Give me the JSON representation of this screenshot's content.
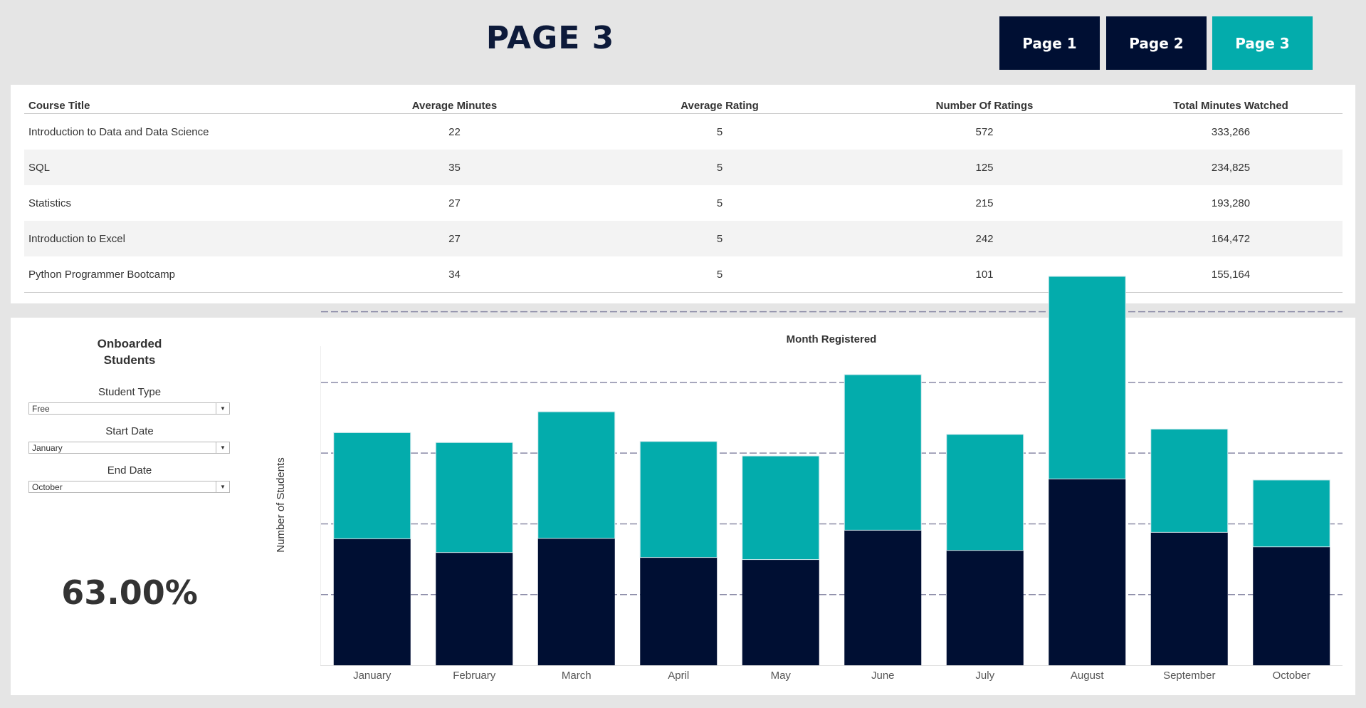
{
  "header": {
    "title": "PAGE 3",
    "nav": [
      {
        "label": "Page 1",
        "active": false
      },
      {
        "label": "Page 2",
        "active": false
      },
      {
        "label": "Page 3",
        "active": true
      }
    ]
  },
  "colors": {
    "navy": "#000f33",
    "teal": "#03acac",
    "grid_dash": "#8a8aa6"
  },
  "table": {
    "columns": [
      "Course Title",
      "Average Minutes",
      "Average Rating",
      "Number Of Ratings",
      "Total Minutes Watched"
    ],
    "rows": [
      [
        "Introduction to Data and Data Science",
        "22",
        "5",
        "572",
        "333,266"
      ],
      [
        "SQL",
        "35",
        "5",
        "125",
        "234,825"
      ],
      [
        "Statistics",
        "27",
        "5",
        "215",
        "193,280"
      ],
      [
        "Introduction to Excel",
        "27",
        "5",
        "242",
        "164,472"
      ],
      [
        "Python Programmer Bootcamp",
        "34",
        "5",
        "101",
        "155,164"
      ]
    ]
  },
  "filters": {
    "title": "Onboarded Students",
    "student_type": {
      "label": "Student Type",
      "value": "Free"
    },
    "start_date": {
      "label": "Start Date",
      "value": "January"
    },
    "end_date": {
      "label": "End Date",
      "value": "October"
    }
  },
  "kpi": {
    "value": "63.00%"
  },
  "chart_data": {
    "type": "bar",
    "stacked": true,
    "title": "Month Registered",
    "xlabel": "",
    "ylabel": "Number of Students",
    "categories": [
      "January",
      "February",
      "March",
      "April",
      "May",
      "June",
      "July",
      "August",
      "September",
      "October"
    ],
    "series": [
      {
        "color": "#000f33",
        "values": [
          35.8,
          31.9,
          35.9,
          30.5,
          29.9,
          38.2,
          32.5,
          52.7,
          37.6,
          33.5
        ]
      },
      {
        "color": "#03acac",
        "values": [
          30.0,
          31.1,
          35.8,
          32.8,
          29.3,
          44.0,
          32.8,
          57.3,
          29.2,
          18.9
        ]
      }
    ],
    "ylim": [
      0,
      110
    ],
    "gridlines": [
      20,
      40,
      60,
      80,
      100
    ],
    "grid": "dashed horizontal",
    "tick_labels_y": false
  }
}
